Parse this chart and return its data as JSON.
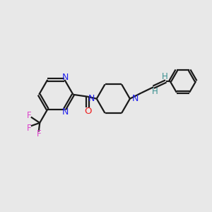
{
  "background_color": "#e8e8e8",
  "bond_color": "#1a1a1a",
  "N_color": "#2020ee",
  "O_color": "#ee2020",
  "F_color": "#dd44cc",
  "H_color": "#3a9090",
  "line_width": 1.6,
  "figsize": [
    3.0,
    3.0
  ],
  "dpi": 100,
  "xlim": [
    0,
    10
  ],
  "ylim": [
    0,
    10
  ]
}
